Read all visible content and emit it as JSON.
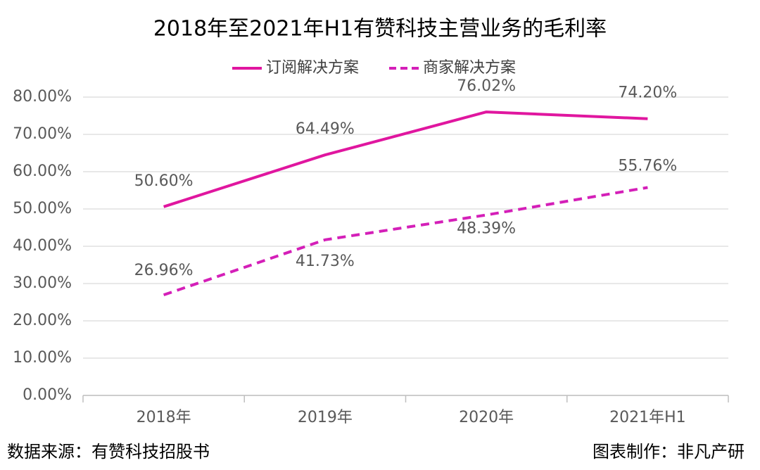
{
  "chart_data": {
    "type": "line",
    "title": "2018年至2021年H1有赞科技主营业务的毛利率",
    "categories": [
      "2018年",
      "2019年",
      "2020年",
      "2021年H1"
    ],
    "series": [
      {
        "name": "订阅解决方案",
        "color": "#e0169f",
        "dash": false,
        "values": [
          50.6,
          64.49,
          76.02,
          74.2
        ],
        "value_labels": [
          "50.60%",
          "64.49%",
          "76.02%",
          "74.20%"
        ]
      },
      {
        "name": "商家解决方案",
        "color": "#d41fb8",
        "dash": true,
        "values": [
          26.96,
          41.73,
          48.39,
          55.76
        ],
        "value_labels": [
          "26.96%",
          "41.73%",
          "48.39%",
          "55.76%"
        ]
      }
    ],
    "ylim": [
      0,
      80
    ],
    "yticks": [
      {
        "value": 0,
        "label": "0.00%"
      },
      {
        "value": 10,
        "label": "10.00%"
      },
      {
        "value": 20,
        "label": "20.00%"
      },
      {
        "value": 30,
        "label": "30.00%"
      },
      {
        "value": 40,
        "label": "40.00%"
      },
      {
        "value": 50,
        "label": "50.00%"
      },
      {
        "value": 60,
        "label": "60.00%"
      },
      {
        "value": 70,
        "label": "70.00%"
      },
      {
        "value": 80,
        "label": "80.00%"
      }
    ],
    "grid": true,
    "legend": "top",
    "source": "数据来源：有赞科技招股书",
    "credit": "图表制作：非凡产研"
  }
}
